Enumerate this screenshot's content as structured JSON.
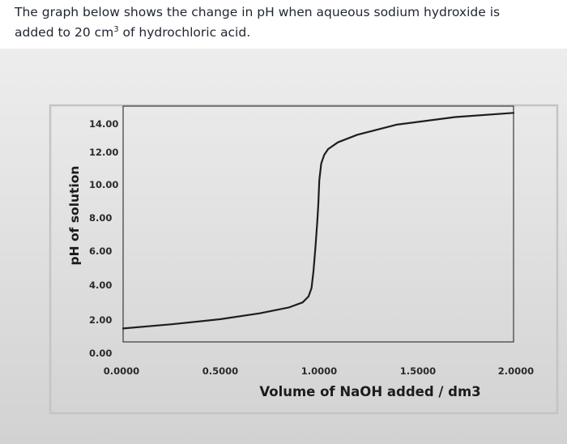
{
  "question": {
    "line1": "The graph below shows the change in pH when aqueous sodium hydroxide is",
    "line2_prefix": "added to 20 cm",
    "line2_sup": "3",
    "line2_suffix": " of hydrochloric acid."
  },
  "chart_data": {
    "type": "line",
    "title": "",
    "xlabel": "Volume of NaOH added / dm3",
    "ylabel": "pH of solution",
    "xlim": [
      0,
      2.0
    ],
    "ylim": [
      0,
      14
    ],
    "grid": false,
    "x_ticks": [
      "0.0000",
      "0.5000",
      "1.0000",
      "1.5000",
      "2.0000"
    ],
    "y_ticks": [
      "0.00",
      "2.00",
      "4.00",
      "6.00",
      "8.00",
      "10.00",
      "12.00",
      "14.00"
    ],
    "series": [
      {
        "color": "#1e1e1e",
        "x": [
          0.0,
          0.25,
          0.5,
          0.7,
          0.85,
          0.92,
          0.95,
          0.965,
          0.975,
          0.985,
          0.995,
          1.0,
          1.005,
          1.015,
          1.03,
          1.05,
          1.1,
          1.2,
          1.4,
          1.7,
          2.0
        ],
        "y": [
          0.8,
          1.05,
          1.35,
          1.7,
          2.05,
          2.35,
          2.7,
          3.2,
          4.2,
          5.6,
          7.2,
          8.2,
          9.6,
          10.6,
          11.1,
          11.45,
          11.85,
          12.3,
          12.9,
          13.35,
          13.6
        ]
      }
    ]
  }
}
